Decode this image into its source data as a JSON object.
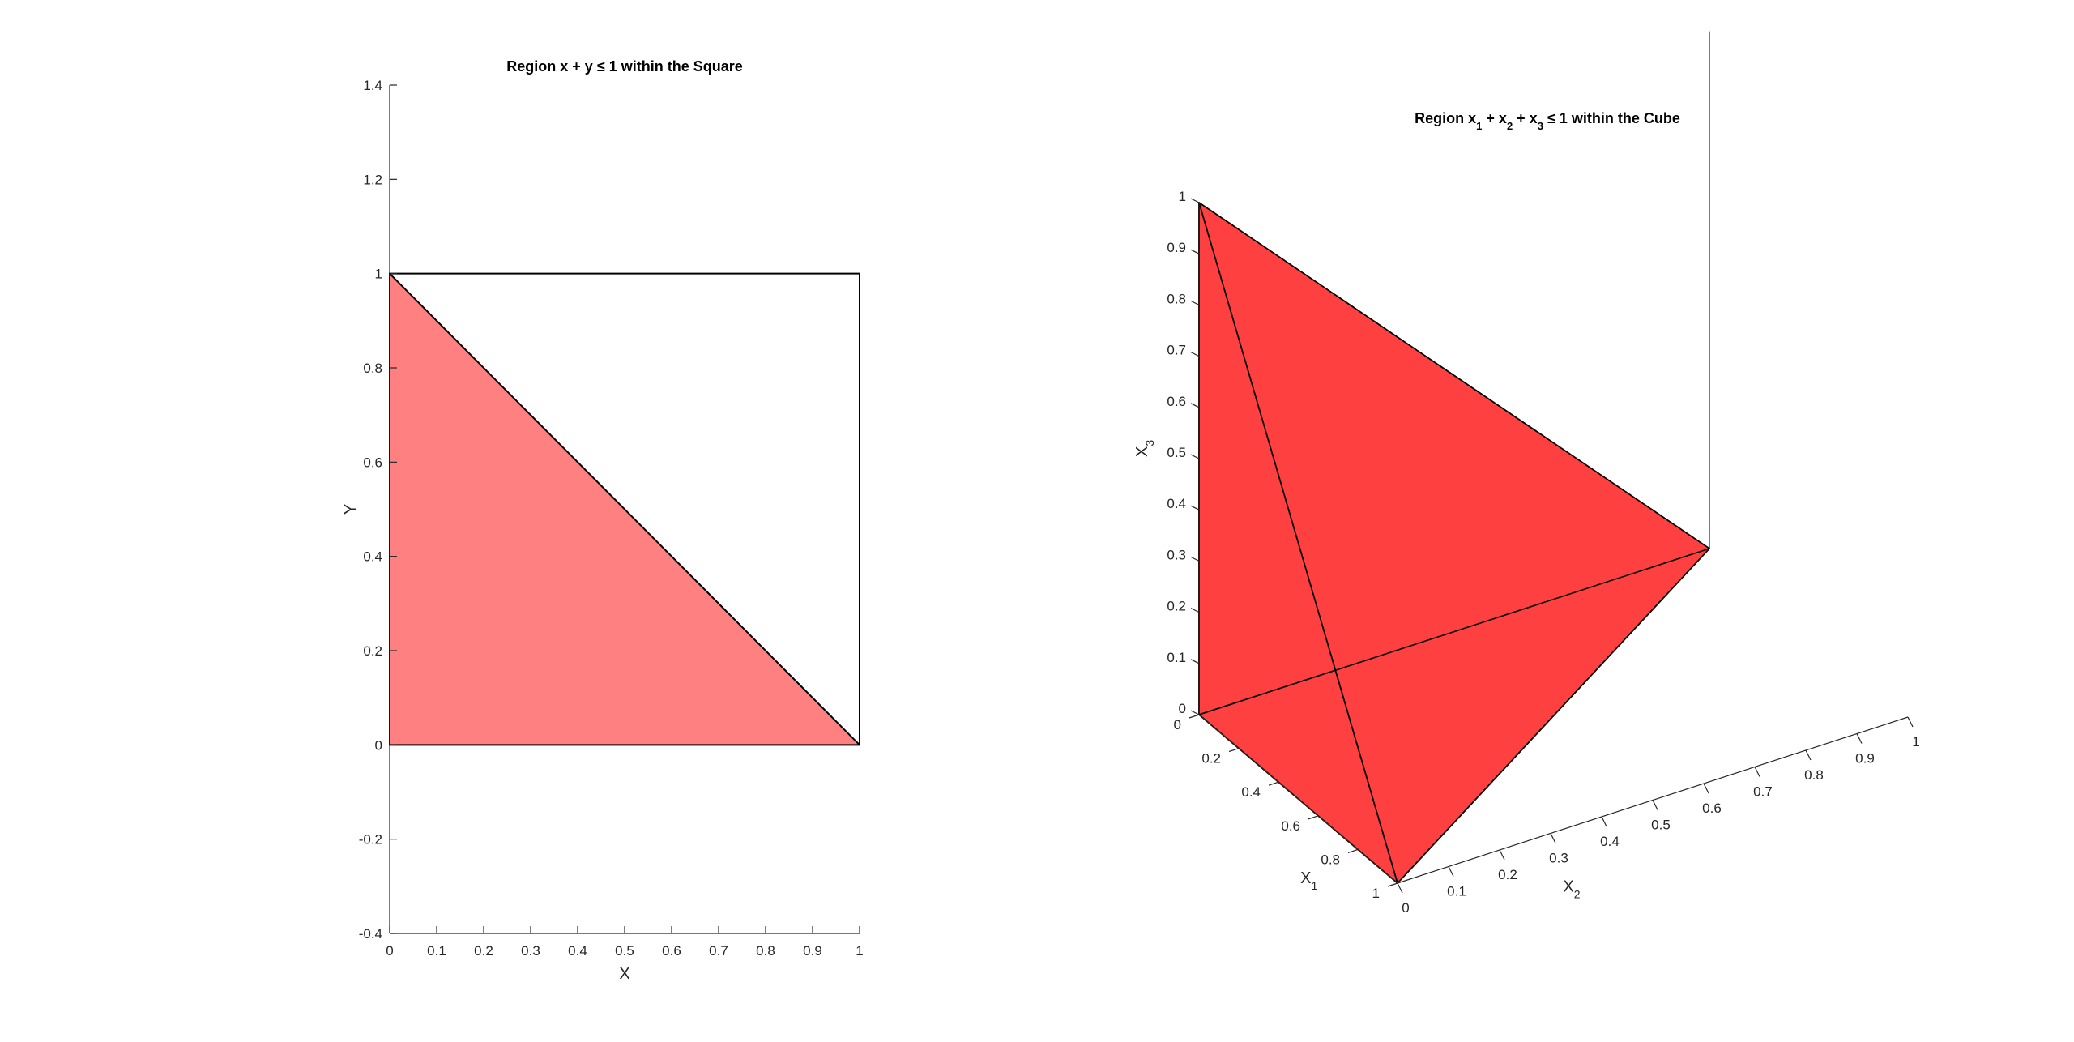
{
  "chart_data": [
    {
      "type": "area",
      "title_pre": "Region x + y ",
      "title_op": "≤",
      "title_post": " 1 within the Square",
      "xlabel": "X",
      "ylabel": "Y",
      "xlim": [
        0,
        1
      ],
      "ylim": [
        -0.4,
        1.4
      ],
      "xticks": [
        0,
        0.1,
        0.2,
        0.3,
        0.4,
        0.5,
        0.6,
        0.7,
        0.8,
        0.9,
        1
      ],
      "xtick_labels": [
        "0",
        "0.1",
        "0.2",
        "0.3",
        "0.4",
        "0.5",
        "0.6",
        "0.7",
        "0.8",
        "0.9",
        "1"
      ],
      "yticks": [
        -0.4,
        -0.2,
        0,
        0.2,
        0.4,
        0.6,
        0.8,
        1,
        1.2,
        1.4
      ],
      "ytick_labels": [
        "-0.4",
        "-0.2",
        "0",
        "0.2",
        "0.4",
        "0.6",
        "0.8",
        "1",
        "1.2",
        "1.4"
      ],
      "square": [
        [
          0,
          0
        ],
        [
          1,
          0
        ],
        [
          1,
          1
        ],
        [
          0,
          1
        ]
      ],
      "region": [
        [
          0,
          0
        ],
        [
          1,
          0
        ],
        [
          0,
          1
        ]
      ],
      "fill_color": "#ff8080",
      "grid": false
    },
    {
      "type": "3d-surface",
      "title_pre": "Region x",
      "title_sub1": "1",
      "title_mid1": " + x",
      "title_sub2": "2",
      "title_mid2": " + x",
      "title_sub3": "3",
      "title_op": " ≤",
      "title_post": " 1 within the Cube",
      "x1label": "X",
      "x1label_sub": "1",
      "x2label": "X",
      "x2label_sub": "2",
      "x3label": "X",
      "x3label_sub": "3",
      "x1lim": [
        0,
        1
      ],
      "x2lim": [
        0,
        1
      ],
      "x3lim": [
        0,
        1
      ],
      "x1ticks": [
        0,
        0.2,
        0.4,
        0.6,
        0.8,
        1
      ],
      "x1tick_labels": [
        "0",
        "0.2",
        "0.4",
        "0.6",
        "0.8",
        "1"
      ],
      "x2ticks": [
        0,
        0.1,
        0.2,
        0.3,
        0.4,
        0.5,
        0.6,
        0.7,
        0.8,
        0.9,
        1
      ],
      "x2tick_labels": [
        "0",
        "0.1",
        "0.2",
        "0.3",
        "0.4",
        "0.5",
        "0.6",
        "0.7",
        "0.8",
        "0.9",
        "1"
      ],
      "x3ticks": [
        0,
        0.1,
        0.2,
        0.3,
        0.4,
        0.5,
        0.6,
        0.7,
        0.8,
        0.9,
        1
      ],
      "x3tick_labels": [
        "0",
        "0.1",
        "0.2",
        "0.3",
        "0.4",
        "0.5",
        "0.6",
        "0.7",
        "0.8",
        "0.9",
        "1"
      ],
      "vertices": [
        [
          0,
          0,
          0
        ],
        [
          1,
          0,
          0
        ],
        [
          0,
          1,
          0
        ],
        [
          0,
          0,
          1
        ]
      ],
      "faces": [
        [
          0,
          1,
          2
        ],
        [
          0,
          1,
          3
        ],
        [
          0,
          2,
          3
        ],
        [
          1,
          2,
          3
        ]
      ],
      "fill_color": "#ff4040",
      "grid": false
    }
  ]
}
